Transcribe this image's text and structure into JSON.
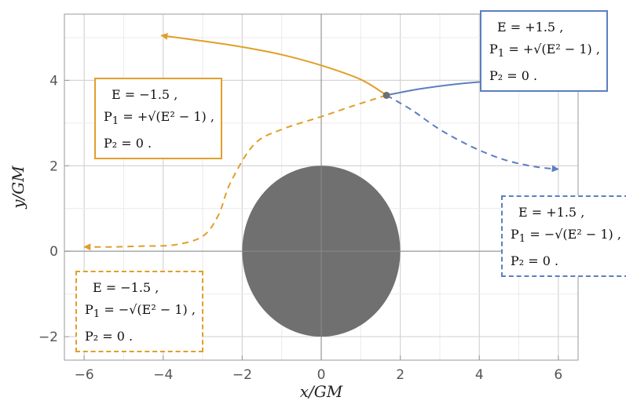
{
  "chart_data": {
    "type": "line",
    "xlabel": "x/GM",
    "ylabel": "y/GM",
    "xlim": [
      -6.5,
      6.5
    ],
    "ylim": [
      -2.55,
      5.55
    ],
    "x_ticks": [
      -6,
      -4,
      -2,
      0,
      2,
      4,
      6
    ],
    "y_ticks": [
      -2,
      0,
      2,
      4
    ],
    "x_tick_labels": [
      "−6",
      "−4",
      "−2",
      "0",
      "2",
      "4",
      "6"
    ],
    "y_tick_labels": [
      "−2",
      "0",
      "2",
      "4"
    ],
    "grid": true,
    "black_hole": {
      "center": [
        0,
        0
      ],
      "radius": 2,
      "color": "#707070"
    },
    "start_point": {
      "x": 1.65,
      "y": 3.65
    },
    "series": [
      {
        "color": "#e09f2a",
        "style": "solid",
        "x": [
          1.65,
          1.0,
          0.0,
          -1.0,
          -2.0,
          -3.0,
          -4.05
        ],
        "y": [
          3.65,
          4.02,
          4.35,
          4.6,
          4.78,
          4.92,
          5.05
        ]
      },
      {
        "color": "#5b7fbf",
        "style": "solid",
        "x": [
          1.65,
          2.5,
          3.5,
          4.5,
          5.5,
          6.0
        ],
        "y": [
          3.65,
          3.8,
          3.92,
          3.99,
          4.03,
          4.05
        ]
      },
      {
        "color": "#e09f2a",
        "style": "dashed",
        "x": [
          1.65,
          0.8,
          0.0,
          -1.0,
          -1.7,
          -2.3,
          -2.6,
          -3.0,
          -3.7,
          -4.5,
          -5.3,
          -6.0
        ],
        "y": [
          3.65,
          3.4,
          3.15,
          2.85,
          2.5,
          1.6,
          0.85,
          0.35,
          0.15,
          0.12,
          0.1,
          0.1
        ]
      },
      {
        "color": "#5b7fbf",
        "style": "dashed",
        "x": [
          1.65,
          2.3,
          3.0,
          3.8,
          4.6,
          5.4,
          6.0
        ],
        "y": [
          3.65,
          3.3,
          2.85,
          2.45,
          2.15,
          1.98,
          1.92
        ]
      }
    ],
    "annotations": [
      {
        "style": "solid-orange",
        "E": "E = −1.5 ,",
        "P1_prefix": "P",
        "P1_sub": "1",
        "P1_rest": " = +√(E² − 1) ,",
        "P2": "P₂ = 0 ."
      },
      {
        "style": "solid-blue",
        "E": "E = +1.5 ,",
        "P1_prefix": "P",
        "P1_sub": "1",
        "P1_rest": " = +√(E² − 1) ,",
        "P2": "P₂ = 0 ."
      },
      {
        "style": "dashed-orange",
        "E": "E = −1.5 ,",
        "P1_prefix": "P",
        "P1_sub": "1",
        "P1_rest": " = −√(E² − 1) ,",
        "P2": "P₂ = 0 ."
      },
      {
        "style": "dashed-blue",
        "E": "E = +1.5 ,",
        "P1_prefix": "P",
        "P1_sub": "1",
        "P1_rest": " = −√(E² − 1) ,",
        "P2": "P₂ = 0 ."
      }
    ]
  }
}
